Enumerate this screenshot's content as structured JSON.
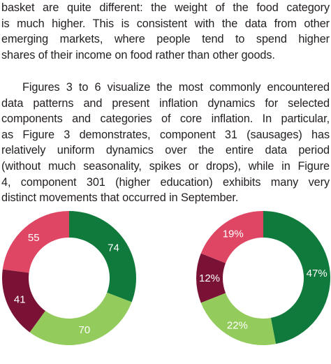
{
  "paragraph1": {
    "lines": [
      "basket are quite different: the weight of the food category",
      "is much higher. This is consistent with the data from other",
      "emerging markets, where people tend to spend higher",
      "shares of their income on food rather than other goods."
    ]
  },
  "paragraph2": {
    "lines": [
      "Figures 3 to 6 visualize the most commonly encountered",
      "data patterns and present inflation dynamics for selected",
      "components and categories of core inflation. In particular,",
      "as Figure 3 demonstrates, component 31 (sausages) has",
      "relatively uniform dynamics over the entire data period",
      "(without much seasonality, spikes or drops), while in Figure",
      "4, component 301 (higher education) exhibits many very",
      "distinct movements that occurred in September."
    ]
  },
  "chart_data": [
    {
      "type": "pie",
      "donut": true,
      "title": "",
      "slices": [
        {
          "label": "74",
          "value": 74,
          "color": "#0f7a3c"
        },
        {
          "label": "70",
          "value": 70,
          "color": "#93cc5c"
        },
        {
          "label": "41",
          "value": 41,
          "color": "#7a1236"
        },
        {
          "label": "55",
          "value": 55,
          "color": "#de4663"
        }
      ]
    },
    {
      "type": "pie",
      "donut": true,
      "title": "",
      "slices": [
        {
          "label": "47%",
          "value": 47,
          "color": "#0f7a3c"
        },
        {
          "label": "22%",
          "value": 22,
          "color": "#93cc5c"
        },
        {
          "label": "12%",
          "value": 12,
          "color": "#7a1236"
        },
        {
          "label": "19%",
          "value": 19,
          "color": "#de4663"
        }
      ]
    }
  ]
}
